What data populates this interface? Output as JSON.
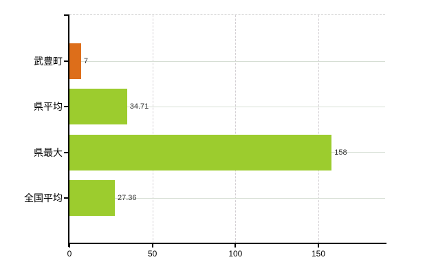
{
  "chart_data": {
    "type": "bar",
    "orientation": "horizontal",
    "title": "",
    "categories": [
      "武豊町",
      "県平均",
      "県最大",
      "全国平均"
    ],
    "values": [
      7,
      34.71,
      158,
      27.36
    ],
    "value_labels": [
      "7",
      "34.71",
      "158",
      "27.36"
    ],
    "bar_colors": [
      "#dd6e1a",
      "#9ccc2e",
      "#9ccc2e",
      "#9ccc2e"
    ],
    "xticks": [
      0,
      50,
      100,
      150
    ],
    "xtick_labels": [
      "0",
      "50",
      "100",
      "150"
    ],
    "xlim": [
      0,
      190
    ],
    "xlabel": "",
    "ylabel": "",
    "grid": true,
    "legend_position": "none",
    "colors": {
      "background": "#ffffff",
      "axis": "#000000",
      "horizontal_grid": "#d6ded4",
      "vertical_grid": "#d3cfd3",
      "top_border": "#cecece",
      "value_label": "#333333",
      "tick_label": "#000000"
    }
  }
}
